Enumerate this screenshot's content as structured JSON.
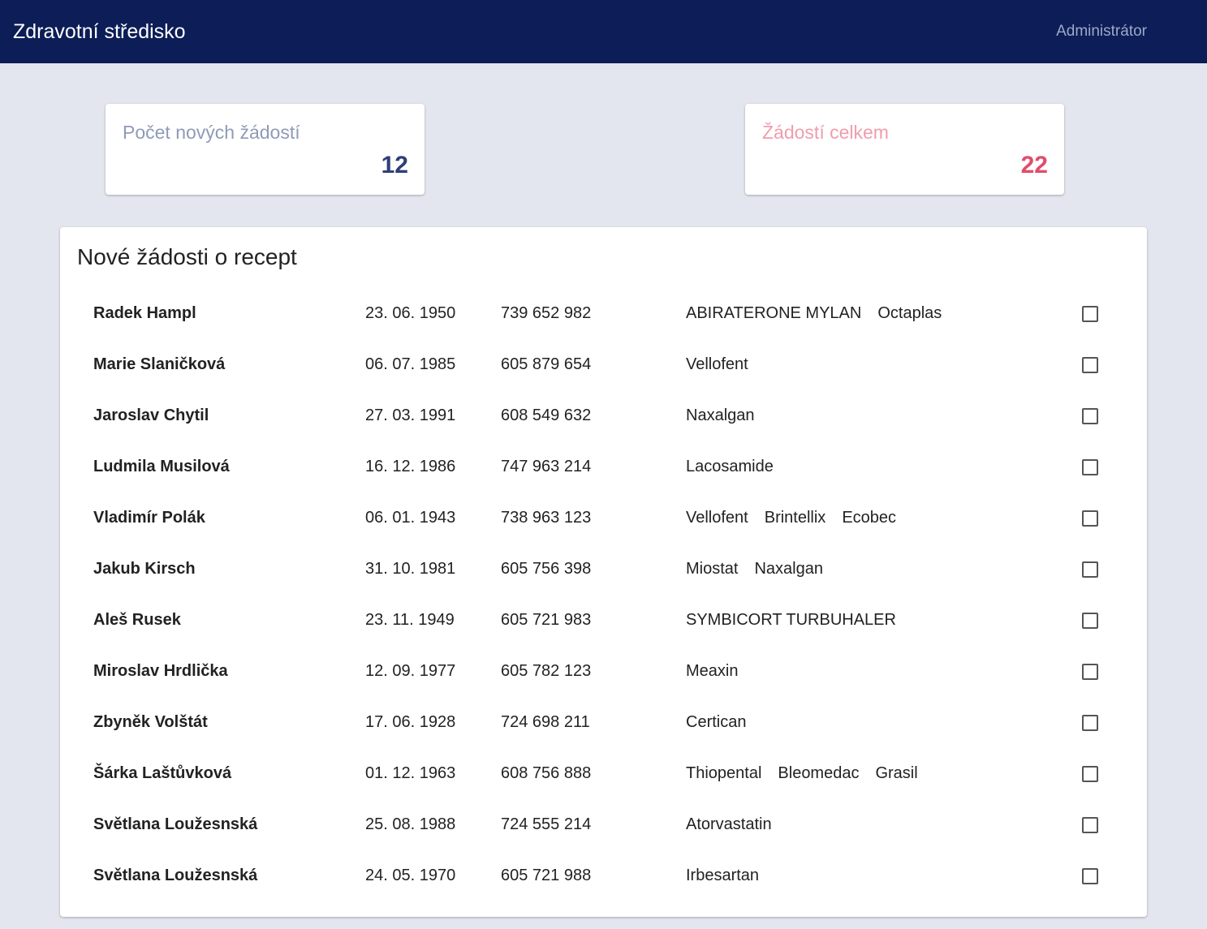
{
  "header": {
    "title": "Zdravotní středisko",
    "user": "Administrátor"
  },
  "stats": {
    "new_label": "Počet nových žádostí",
    "new_value": "12",
    "total_label": "Žádostí celkem",
    "total_value": "22"
  },
  "colors": {
    "header_bg": "#0c1d57",
    "new_accent": "#2e3f78",
    "total_accent": "#e04d6c"
  },
  "requests": {
    "title": "Nové žádosti o recept",
    "rows": [
      {
        "name": "Radek Hampl",
        "birth": "23. 06. 1950",
        "phone": "739 652 982",
        "meds": [
          "ABIRATERONE MYLAN",
          "Octaplas"
        ],
        "checked": false
      },
      {
        "name": "Marie Slaničková",
        "birth": "06. 07. 1985",
        "phone": "605 879 654",
        "meds": [
          "Vellofent"
        ],
        "checked": false
      },
      {
        "name": "Jaroslav Chytil",
        "birth": "27. 03. 1991",
        "phone": "608 549 632",
        "meds": [
          "Naxalgan"
        ],
        "checked": false
      },
      {
        "name": "Ludmila Musilová",
        "birth": "16. 12. 1986",
        "phone": "747 963 214",
        "meds": [
          "Lacosamide"
        ],
        "checked": false
      },
      {
        "name": "Vladimír Polák",
        "birth": "06. 01. 1943",
        "phone": "738 963 123",
        "meds": [
          "Vellofent",
          "Brintellix",
          "Ecobec"
        ],
        "checked": false
      },
      {
        "name": "Jakub Kirsch",
        "birth": "31. 10. 1981",
        "phone": "605 756 398",
        "meds": [
          "Miostat",
          "Naxalgan"
        ],
        "checked": false
      },
      {
        "name": "Aleš Rusek",
        "birth": "23. 11. 1949",
        "phone": "605 721 983",
        "meds": [
          "SYMBICORT TURBUHALER"
        ],
        "checked": false
      },
      {
        "name": "Miroslav Hrdlička",
        "birth": "12. 09. 1977",
        "phone": "605 782 123",
        "meds": [
          "Meaxin"
        ],
        "checked": false
      },
      {
        "name": "Zbyněk Volštát",
        "birth": "17. 06. 1928",
        "phone": "724 698 211",
        "meds": [
          "Certican"
        ],
        "checked": false
      },
      {
        "name": "Šárka Laštůvková",
        "birth": "01. 12. 1963",
        "phone": "608 756 888",
        "meds": [
          "Thiopental",
          "Bleomedac",
          "Grasil"
        ],
        "checked": false
      },
      {
        "name": "Světlana Loužesnská",
        "birth": "25. 08. 1988",
        "phone": "724 555 214",
        "meds": [
          "Atorvastatin"
        ],
        "checked": false
      },
      {
        "name": "Světlana Loužesnská",
        "birth": "24. 05. 1970",
        "phone": "605 721 988",
        "meds": [
          "Irbesartan"
        ],
        "checked": false
      }
    ]
  }
}
